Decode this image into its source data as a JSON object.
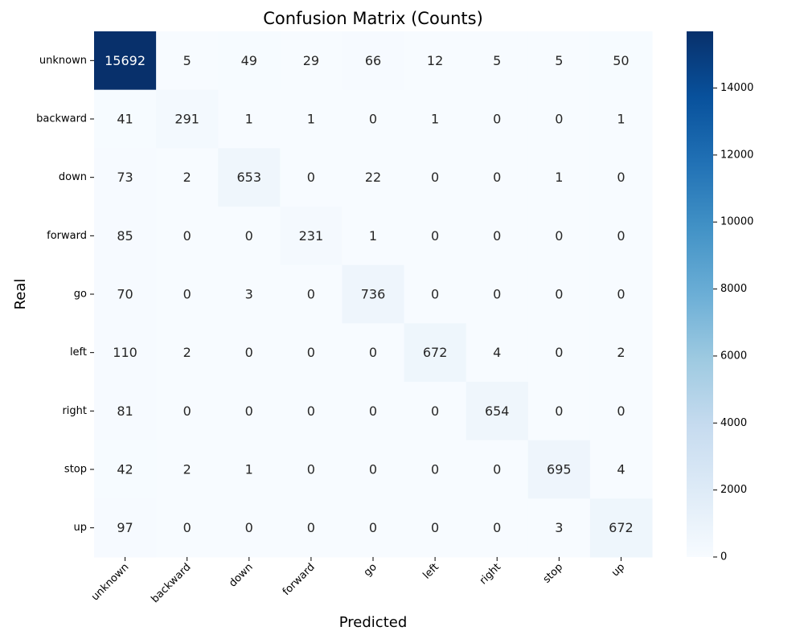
{
  "chart_data": {
    "type": "heatmap",
    "title": "Confusion Matrix (Counts)",
    "xlabel": "Predicted",
    "ylabel": "Real",
    "x_categories": [
      "unknown",
      "backward",
      "down",
      "forward",
      "go",
      "left",
      "right",
      "stop",
      "up"
    ],
    "y_categories": [
      "unknown",
      "backward",
      "down",
      "forward",
      "go",
      "left",
      "right",
      "stop",
      "up"
    ],
    "values": [
      [
        15692,
        5,
        49,
        29,
        66,
        12,
        5,
        5,
        50
      ],
      [
        41,
        291,
        1,
        1,
        0,
        1,
        0,
        0,
        1
      ],
      [
        73,
        2,
        653,
        0,
        22,
        0,
        0,
        1,
        0
      ],
      [
        85,
        0,
        0,
        231,
        1,
        0,
        0,
        0,
        0
      ],
      [
        70,
        0,
        3,
        0,
        736,
        0,
        0,
        0,
        0
      ],
      [
        110,
        2,
        0,
        0,
        0,
        672,
        4,
        0,
        2
      ],
      [
        81,
        0,
        0,
        0,
        0,
        0,
        654,
        0,
        0
      ],
      [
        42,
        2,
        1,
        0,
        0,
        0,
        0,
        695,
        4
      ],
      [
        97,
        0,
        0,
        0,
        0,
        0,
        0,
        3,
        672
      ]
    ],
    "colormap": "Blues",
    "colorbar": {
      "range": [
        0,
        15692
      ],
      "ticks": [
        0,
        2000,
        4000,
        6000,
        8000,
        10000,
        12000,
        14000
      ]
    },
    "grid": false,
    "x_tick_rotation_deg": 45
  }
}
